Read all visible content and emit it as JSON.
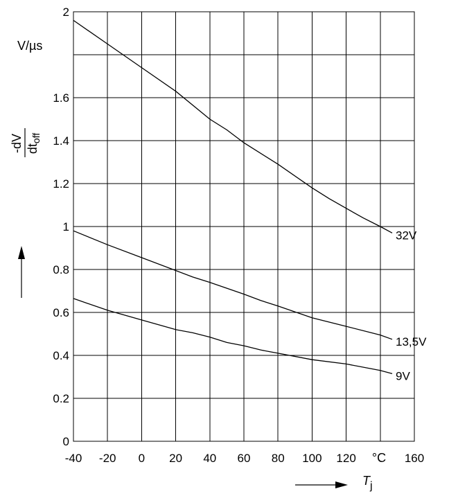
{
  "chart_data": {
    "type": "line",
    "title": "",
    "xlabel": "T",
    "xlabel_sub": "j",
    "x_unit": "°C",
    "ylabel": "-dV",
    "ylabel_den": "dt",
    "ylabel_den_sub": "off",
    "y_unit": "V/µs",
    "xlim": [
      -40,
      160
    ],
    "ylim": [
      0,
      2
    ],
    "x_ticks": [
      -40,
      -20,
      0,
      20,
      40,
      60,
      80,
      100,
      120,
      140,
      160
    ],
    "x_tick_labels": [
      "-40",
      "-20",
      "0",
      "20",
      "40",
      "60",
      "80",
      "100",
      "120",
      "",
      "160"
    ],
    "y_ticks": [
      0,
      0.2,
      0.4,
      0.6,
      0.8,
      1,
      1.2,
      1.4,
      1.6,
      1.8,
      2
    ],
    "y_tick_labels": [
      "0",
      "0.2",
      "0.4",
      "0.6",
      "0.8",
      "1",
      "1.2",
      "1.4",
      "1.6",
      "",
      "2"
    ],
    "grid": true,
    "series": [
      {
        "name": "32V",
        "x": [
          -40,
          -20,
          0,
          20,
          40,
          50,
          60,
          80,
          100,
          110,
          120,
          130,
          140,
          147
        ],
        "y": [
          1.96,
          1.85,
          1.74,
          1.63,
          1.5,
          1.45,
          1.39,
          1.29,
          1.18,
          1.13,
          1.085,
          1.04,
          1.0,
          0.97
        ]
      },
      {
        "name": "13,5V",
        "x": [
          -40,
          -20,
          0,
          20,
          30,
          40,
          60,
          70,
          80,
          100,
          120,
          140,
          147
        ],
        "y": [
          0.98,
          0.915,
          0.855,
          0.795,
          0.765,
          0.74,
          0.685,
          0.655,
          0.63,
          0.575,
          0.535,
          0.495,
          0.475
        ]
      },
      {
        "name": "9V",
        "x": [
          -40,
          -20,
          0,
          20,
          30,
          40,
          50,
          60,
          70,
          80,
          100,
          120,
          140,
          147
        ],
        "y": [
          0.665,
          0.61,
          0.565,
          0.52,
          0.505,
          0.485,
          0.46,
          0.445,
          0.425,
          0.41,
          0.38,
          0.36,
          0.33,
          0.315
        ]
      }
    ]
  }
}
